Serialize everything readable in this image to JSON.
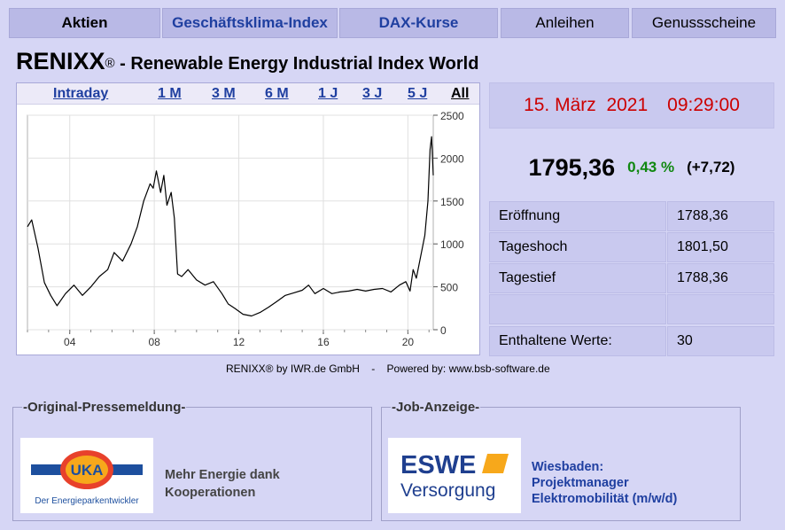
{
  "nav": {
    "tabs": [
      {
        "label": "Aktien"
      },
      {
        "label": "Geschäftsklima-Index"
      },
      {
        "label": "DAX-Kurse"
      },
      {
        "label": "Anleihen"
      },
      {
        "label": "Genussscheine"
      }
    ]
  },
  "header": {
    "name": "RENIXX",
    "reg": "®",
    "subtitle": " - Renewable Energy Industrial Index World"
  },
  "ranges": [
    "Intraday",
    "1 M",
    "3 M",
    "6 M",
    "1 J",
    "3 J",
    "5 J",
    "All"
  ],
  "selected_range": "All",
  "quote": {
    "date": "15. März  2021",
    "time": "09:29:00",
    "price": "1795,36",
    "change_pct": "0,43 %",
    "change_abs": "(+7,72)",
    "stats": [
      {
        "label": "Eröffnung",
        "value": "1788,36"
      },
      {
        "label": "Tageshoch",
        "value": "1801,50"
      },
      {
        "label": "Tagestief",
        "value": "1788,36"
      }
    ],
    "members_label": "Enthaltene Werte:",
    "members_value": "30"
  },
  "credit": "RENIXX® by IWR.de GmbH    -    Powered by: www.bsb-software.de",
  "press": {
    "legend": "-Original-Pressemeldung-",
    "logo_text": "UKA",
    "logo_tagline": "Der Energieparkentwickler",
    "text": [
      "Mehr Energie dank",
      "Kooperationen"
    ]
  },
  "job": {
    "legend": "-Job-Anzeige-",
    "logo_line1": "ESWE",
    "logo_line2": "Versorgung",
    "text": [
      "Wiesbaden:",
      "Projektmanager",
      "Elektromobilität (m/w/d)"
    ]
  },
  "colors": {
    "accent": "#1f3fa0",
    "date": "#cc0000",
    "positive": "#118811"
  },
  "chart_data": {
    "type": "line",
    "x_tick_labels": [
      "04",
      "08",
      "12",
      "16",
      "20"
    ],
    "y_tick_labels": [
      "0",
      "500",
      "1000",
      "1500",
      "2000",
      "2500"
    ],
    "ylim": [
      0,
      2500
    ],
    "xlim": [
      2002,
      2021.2
    ],
    "grid": true,
    "series": [
      {
        "x": [
          2002.0,
          2002.2,
          2002.5,
          2002.8,
          2003.1,
          2003.4,
          2003.8,
          2004.2,
          2004.6,
          2005.0,
          2005.4,
          2005.8,
          2006.1,
          2006.5,
          2006.9,
          2007.2,
          2007.5,
          2007.8,
          2007.95,
          2008.1,
          2008.3,
          2008.45,
          2008.6,
          2008.8,
          2008.95,
          2009.1,
          2009.3,
          2009.6,
          2010.0,
          2010.4,
          2010.8,
          2011.2,
          2011.5,
          2011.8,
          2012.2,
          2012.6,
          2013.0,
          2013.4,
          2013.8,
          2014.2,
          2014.6,
          2015.0,
          2015.3,
          2015.6,
          2016.0,
          2016.4,
          2016.8,
          2017.2,
          2017.6,
          2018.0,
          2018.4,
          2018.8,
          2019.2,
          2019.6,
          2019.9,
          2020.1,
          2020.25,
          2020.4,
          2020.6,
          2020.8,
          2020.95,
          2021.05,
          2021.12,
          2021.2
        ],
        "y": [
          1200,
          1280,
          950,
          550,
          400,
          280,
          420,
          520,
          400,
          500,
          620,
          700,
          900,
          800,
          1000,
          1200,
          1500,
          1700,
          1650,
          1850,
          1600,
          1800,
          1450,
          1600,
          1300,
          650,
          620,
          700,
          580,
          520,
          560,
          420,
          300,
          250,
          180,
          160,
          200,
          260,
          330,
          400,
          430,
          460,
          520,
          420,
          480,
          420,
          440,
          450,
          470,
          450,
          470,
          480,
          440,
          520,
          560,
          450,
          700,
          600,
          850,
          1100,
          1500,
          2100,
          2250,
          1800
        ]
      }
    ]
  }
}
